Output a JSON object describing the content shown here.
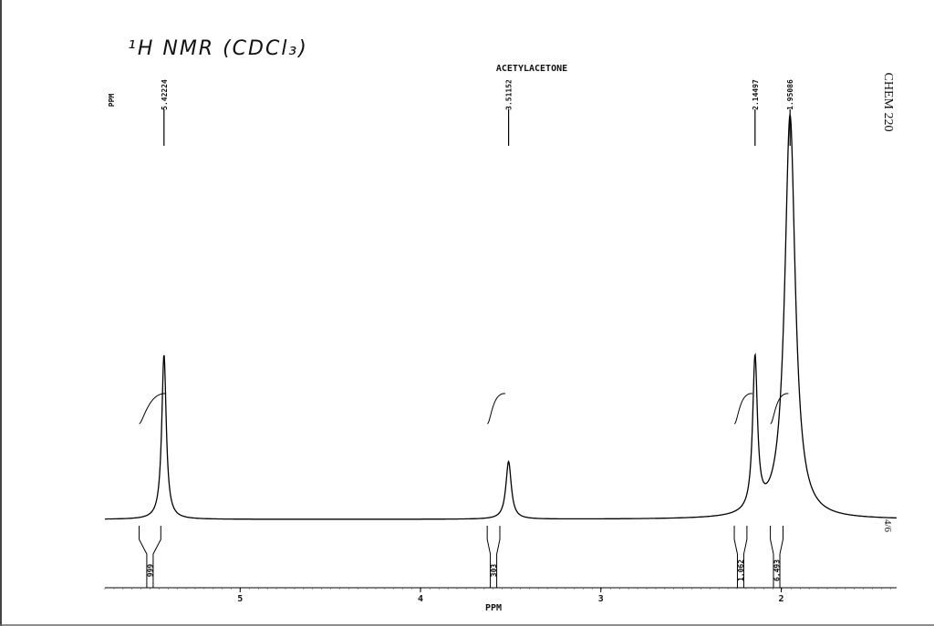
{
  "chart_data": {
    "type": "nmr",
    "title": "¹H NMR (CDCl₃)",
    "subtitle": "ACETYLACETONE",
    "axis_corner_label": "PPM",
    "x_label": "PPM",
    "side_label": "CHEM 220",
    "page_label": "4/6",
    "xlim": [
      5.75,
      1.36
    ],
    "xticks": [
      5,
      4,
      3,
      2
    ],
    "ylim": [
      0,
      100
    ],
    "color": "#000000",
    "peaks": [
      {
        "ppm": 5.42224,
        "height": 40,
        "hwhm": 0.015
      },
      {
        "ppm": 3.51152,
        "height": 14,
        "hwhm": 0.018
      },
      {
        "ppm": 2.14497,
        "height": 37,
        "hwhm": 0.016
      },
      {
        "ppm": 1.95086,
        "height": 98,
        "hwhm": 0.035
      }
    ],
    "integrals": [
      {
        "value": 999,
        "from": 5.56,
        "to": 5.44
      },
      {
        "value": 303,
        "from": 3.63,
        "to": 3.56
      },
      {
        "value": 1.062,
        "from": 2.26,
        "to": 2.19
      },
      {
        "value": 6.493,
        "from": 2.06,
        "to": 1.99
      }
    ]
  }
}
